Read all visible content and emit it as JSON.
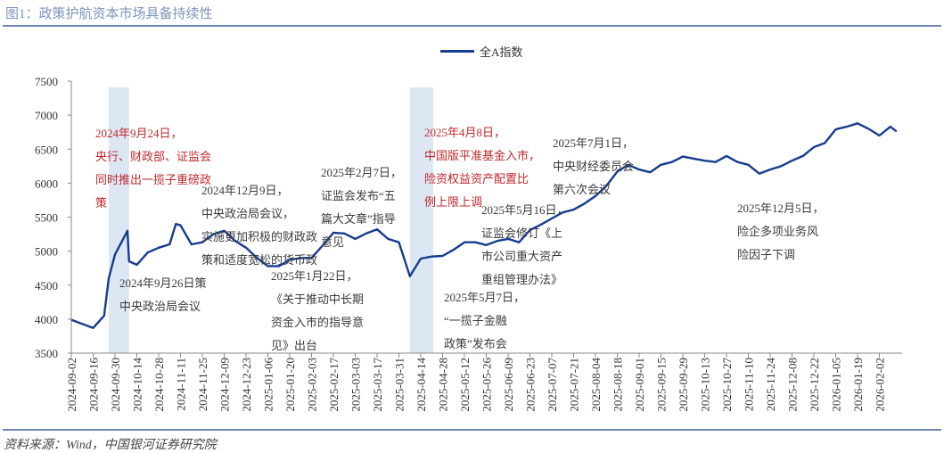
{
  "title": "图1：政策护航资本市场具备持续性",
  "source": "资料来源：Wind，中国银河证券研究院",
  "chart_data": {
    "type": "line",
    "title": "",
    "xlabel": "",
    "ylabel": "",
    "ylim": [
      3500,
      7500
    ],
    "yticks": [
      "7500",
      "7000",
      "6500",
      "6000",
      "5500",
      "5000",
      "4500",
      "4000",
      "3500"
    ],
    "xticks": [
      "2024-09-02",
      "2024-09-16",
      "2024-09-30",
      "2024-10-14",
      "2024-10-28",
      "2024-11-11",
      "2024-11-25",
      "2024-12-09",
      "2024-12-23",
      "2025-01-06",
      "2025-01-20",
      "2025-02-03",
      "2025-02-17",
      "2025-03-03",
      "2025-03-17",
      "2025-03-31",
      "2025-04-14",
      "2025-04-28",
      "2025-05-12",
      "2025-05-26",
      "2025-06-09",
      "2025-06-23",
      "2025-07-07",
      "2025-07-21",
      "2025-08-04",
      "2025-08-18",
      "2025-09-01",
      "2025-09-15",
      "2025-09-29",
      "2025-10-13",
      "2025-10-27",
      "2025-11-10",
      "2025-11-24",
      "2025-12-08",
      "2025-12-22",
      "2026-01-05",
      "2026-01-19",
      "2026-02-02"
    ],
    "legend_position": "top-center",
    "grid": false,
    "highlight_ranges": [
      [
        "2024-09-26",
        "2024-10-09"
      ],
      [
        "2025-04-07",
        "2025-04-22"
      ]
    ],
    "highlight_color": "#dce7f3",
    "series": [
      {
        "name": "全A指数",
        "color": "#163c8f",
        "x": [
          "2024-09-02",
          "2024-09-09",
          "2024-09-16",
          "2024-09-23",
          "2024-09-26",
          "2024-09-30",
          "2024-10-08",
          "2024-10-09",
          "2024-10-14",
          "2024-10-21",
          "2024-10-28",
          "2024-11-04",
          "2024-11-08",
          "2024-11-11",
          "2024-11-18",
          "2024-11-25",
          "2024-12-02",
          "2024-12-09",
          "2024-12-16",
          "2024-12-23",
          "2024-12-30",
          "2025-01-06",
          "2025-01-13",
          "2025-01-20",
          "2025-01-27",
          "2025-02-03",
          "2025-02-10",
          "2025-02-17",
          "2025-02-24",
          "2025-03-03",
          "2025-03-10",
          "2025-03-17",
          "2025-03-24",
          "2025-03-31",
          "2025-04-07",
          "2025-04-14",
          "2025-04-21",
          "2025-04-28",
          "2025-05-05",
          "2025-05-12",
          "2025-05-19",
          "2025-05-26",
          "2025-06-02",
          "2025-06-09",
          "2025-06-16",
          "2025-06-23",
          "2025-06-30",
          "2025-07-07",
          "2025-07-14",
          "2025-07-21",
          "2025-07-28",
          "2025-08-04",
          "2025-08-11",
          "2025-08-18",
          "2025-08-25",
          "2025-09-01",
          "2025-09-08",
          "2025-09-15",
          "2025-09-22",
          "2025-09-29",
          "2025-10-06",
          "2025-10-13",
          "2025-10-20",
          "2025-10-27",
          "2025-11-03",
          "2025-11-10",
          "2025-11-17",
          "2025-11-24",
          "2025-12-01",
          "2025-12-08",
          "2025-12-15",
          "2025-12-22",
          "2025-12-29",
          "2026-01-05",
          "2026-01-12",
          "2026-01-19",
          "2026-01-26",
          "2026-02-02",
          "2026-02-09",
          "2026-02-13"
        ],
        "values": [
          3990,
          3930,
          3870,
          4050,
          4600,
          4950,
          5300,
          4850,
          4800,
          4980,
          5050,
          5100,
          5400,
          5380,
          5100,
          5130,
          5250,
          5300,
          5150,
          5050,
          4900,
          4780,
          4780,
          4870,
          4900,
          4900,
          5080,
          5270,
          5260,
          5180,
          5260,
          5320,
          5180,
          5130,
          4630,
          4890,
          4920,
          4930,
          5020,
          5130,
          5130,
          5090,
          5150,
          5180,
          5130,
          5310,
          5390,
          5480,
          5570,
          5610,
          5700,
          5810,
          5960,
          6170,
          6270,
          6200,
          6160,
          6270,
          6310,
          6390,
          6360,
          6330,
          6310,
          6400,
          6310,
          6270,
          6140,
          6200,
          6250,
          6330,
          6400,
          6530,
          6590,
          6790,
          6830,
          6880,
          6800,
          6700,
          6830,
          6760
        ]
      }
    ],
    "annotations": {
      "a0924": [
        "2024年9月24日，",
        "央行、财政部、证监会",
        "同时推出一揽子重磅政",
        "策"
      ],
      "a0926": [
        "2024年9月26日策",
        "中央政治局会议"
      ],
      "a1209": [
        "2024年12月9日，",
        "中央政治局会议，",
        "实施更加积极的财政政",
        "策和适度宽松的货币政"
      ],
      "a0122": [
        "2025年1月22日，",
        "《关于推动中长期",
        "资金入市的指导意",
        "见》出台"
      ],
      "a0207": [
        "2025年2月7日，",
        "证监会发布“五",
        "篇大文章”指导",
        "意见"
      ],
      "a0408": [
        "2025年4月8日，",
        "中国版平准基金入市，",
        "险资权益资产配置比",
        "例上限上调"
      ],
      "a0507": [
        "2025年5月7日，",
        "“一揽子金融",
        "政策”发布会"
      ],
      "a0516": [
        "2025年5月16日，",
        "证监会修订《上",
        "市公司重大资产",
        "重组管理办法》"
      ],
      "a0701": [
        "2025年7月1日，",
        "中央财经委员会",
        "第六次会议"
      ],
      "a1205": [
        "2025年12月5日，",
        "险企多项业务风",
        "险因子下调"
      ]
    }
  }
}
